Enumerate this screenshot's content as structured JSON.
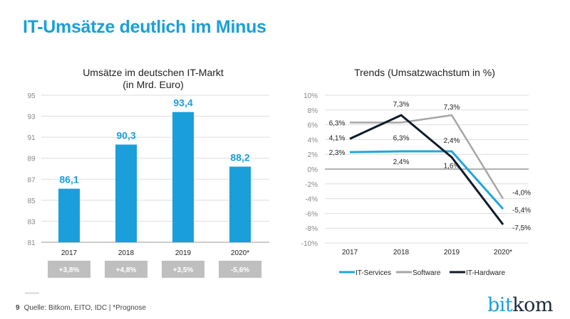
{
  "title": "IT-Umsätze deutlich im Minus",
  "footer": {
    "page": "9",
    "source": "Quelle: Bitkom, EITO, IDC | *Prognose"
  },
  "logo": {
    "part1": "bit",
    "part2": "kom"
  },
  "colors": {
    "accent": "#1a9fda",
    "services": "#1fa6dc",
    "software": "#a6a6a6",
    "hardware": "#0f1b2a",
    "badge": "#bfbfbf"
  },
  "chart_data": [
    {
      "type": "bar",
      "title": "Umsätze im deutschen IT-Markt",
      "subtitle": "(in Mrd. Euro)",
      "categories": [
        "2017",
        "2018",
        "2019",
        "2020*"
      ],
      "values": [
        86.1,
        90.3,
        93.4,
        88.2
      ],
      "data_labels": [
        "86,1",
        "90,3",
        "93,4",
        "88,2"
      ],
      "growth_labels": [
        "+3,8%",
        "+4,8%",
        "+3,5%",
        "-5,6%"
      ],
      "yticks": [
        "81",
        "83",
        "85",
        "87",
        "89",
        "91",
        "93",
        "95"
      ],
      "ylim": [
        81,
        95
      ],
      "grid": true
    },
    {
      "type": "line",
      "title": "Trends (Umsatzwachstum in %)",
      "categories": [
        "2017",
        "2018",
        "2019",
        "2020*"
      ],
      "yticks": [
        "-10%",
        "-8%",
        "-6%",
        "-4%",
        "-2%",
        "0%",
        "2%",
        "4%",
        "6%",
        "8%",
        "10%"
      ],
      "ylim": [
        -10,
        10
      ],
      "grid": true,
      "legend": "bottom",
      "series": [
        {
          "name": "IT-Services",
          "values": [
            2.3,
            2.4,
            2.4,
            -5.4
          ],
          "labels": [
            "2,3%",
            "2,4%",
            "2,4%",
            "-5,4%"
          ]
        },
        {
          "name": "Software",
          "values": [
            6.3,
            6.3,
            7.3,
            -4.0
          ],
          "labels": [
            "6,3%",
            "6,3%",
            "7,3%",
            "-4,0%"
          ]
        },
        {
          "name": "IT-Hardware",
          "values": [
            4.1,
            7.3,
            1.6,
            -7.5
          ],
          "labels": [
            "4,1%",
            "7,3%",
            "1,6%",
            "-7,5%"
          ]
        }
      ]
    }
  ]
}
